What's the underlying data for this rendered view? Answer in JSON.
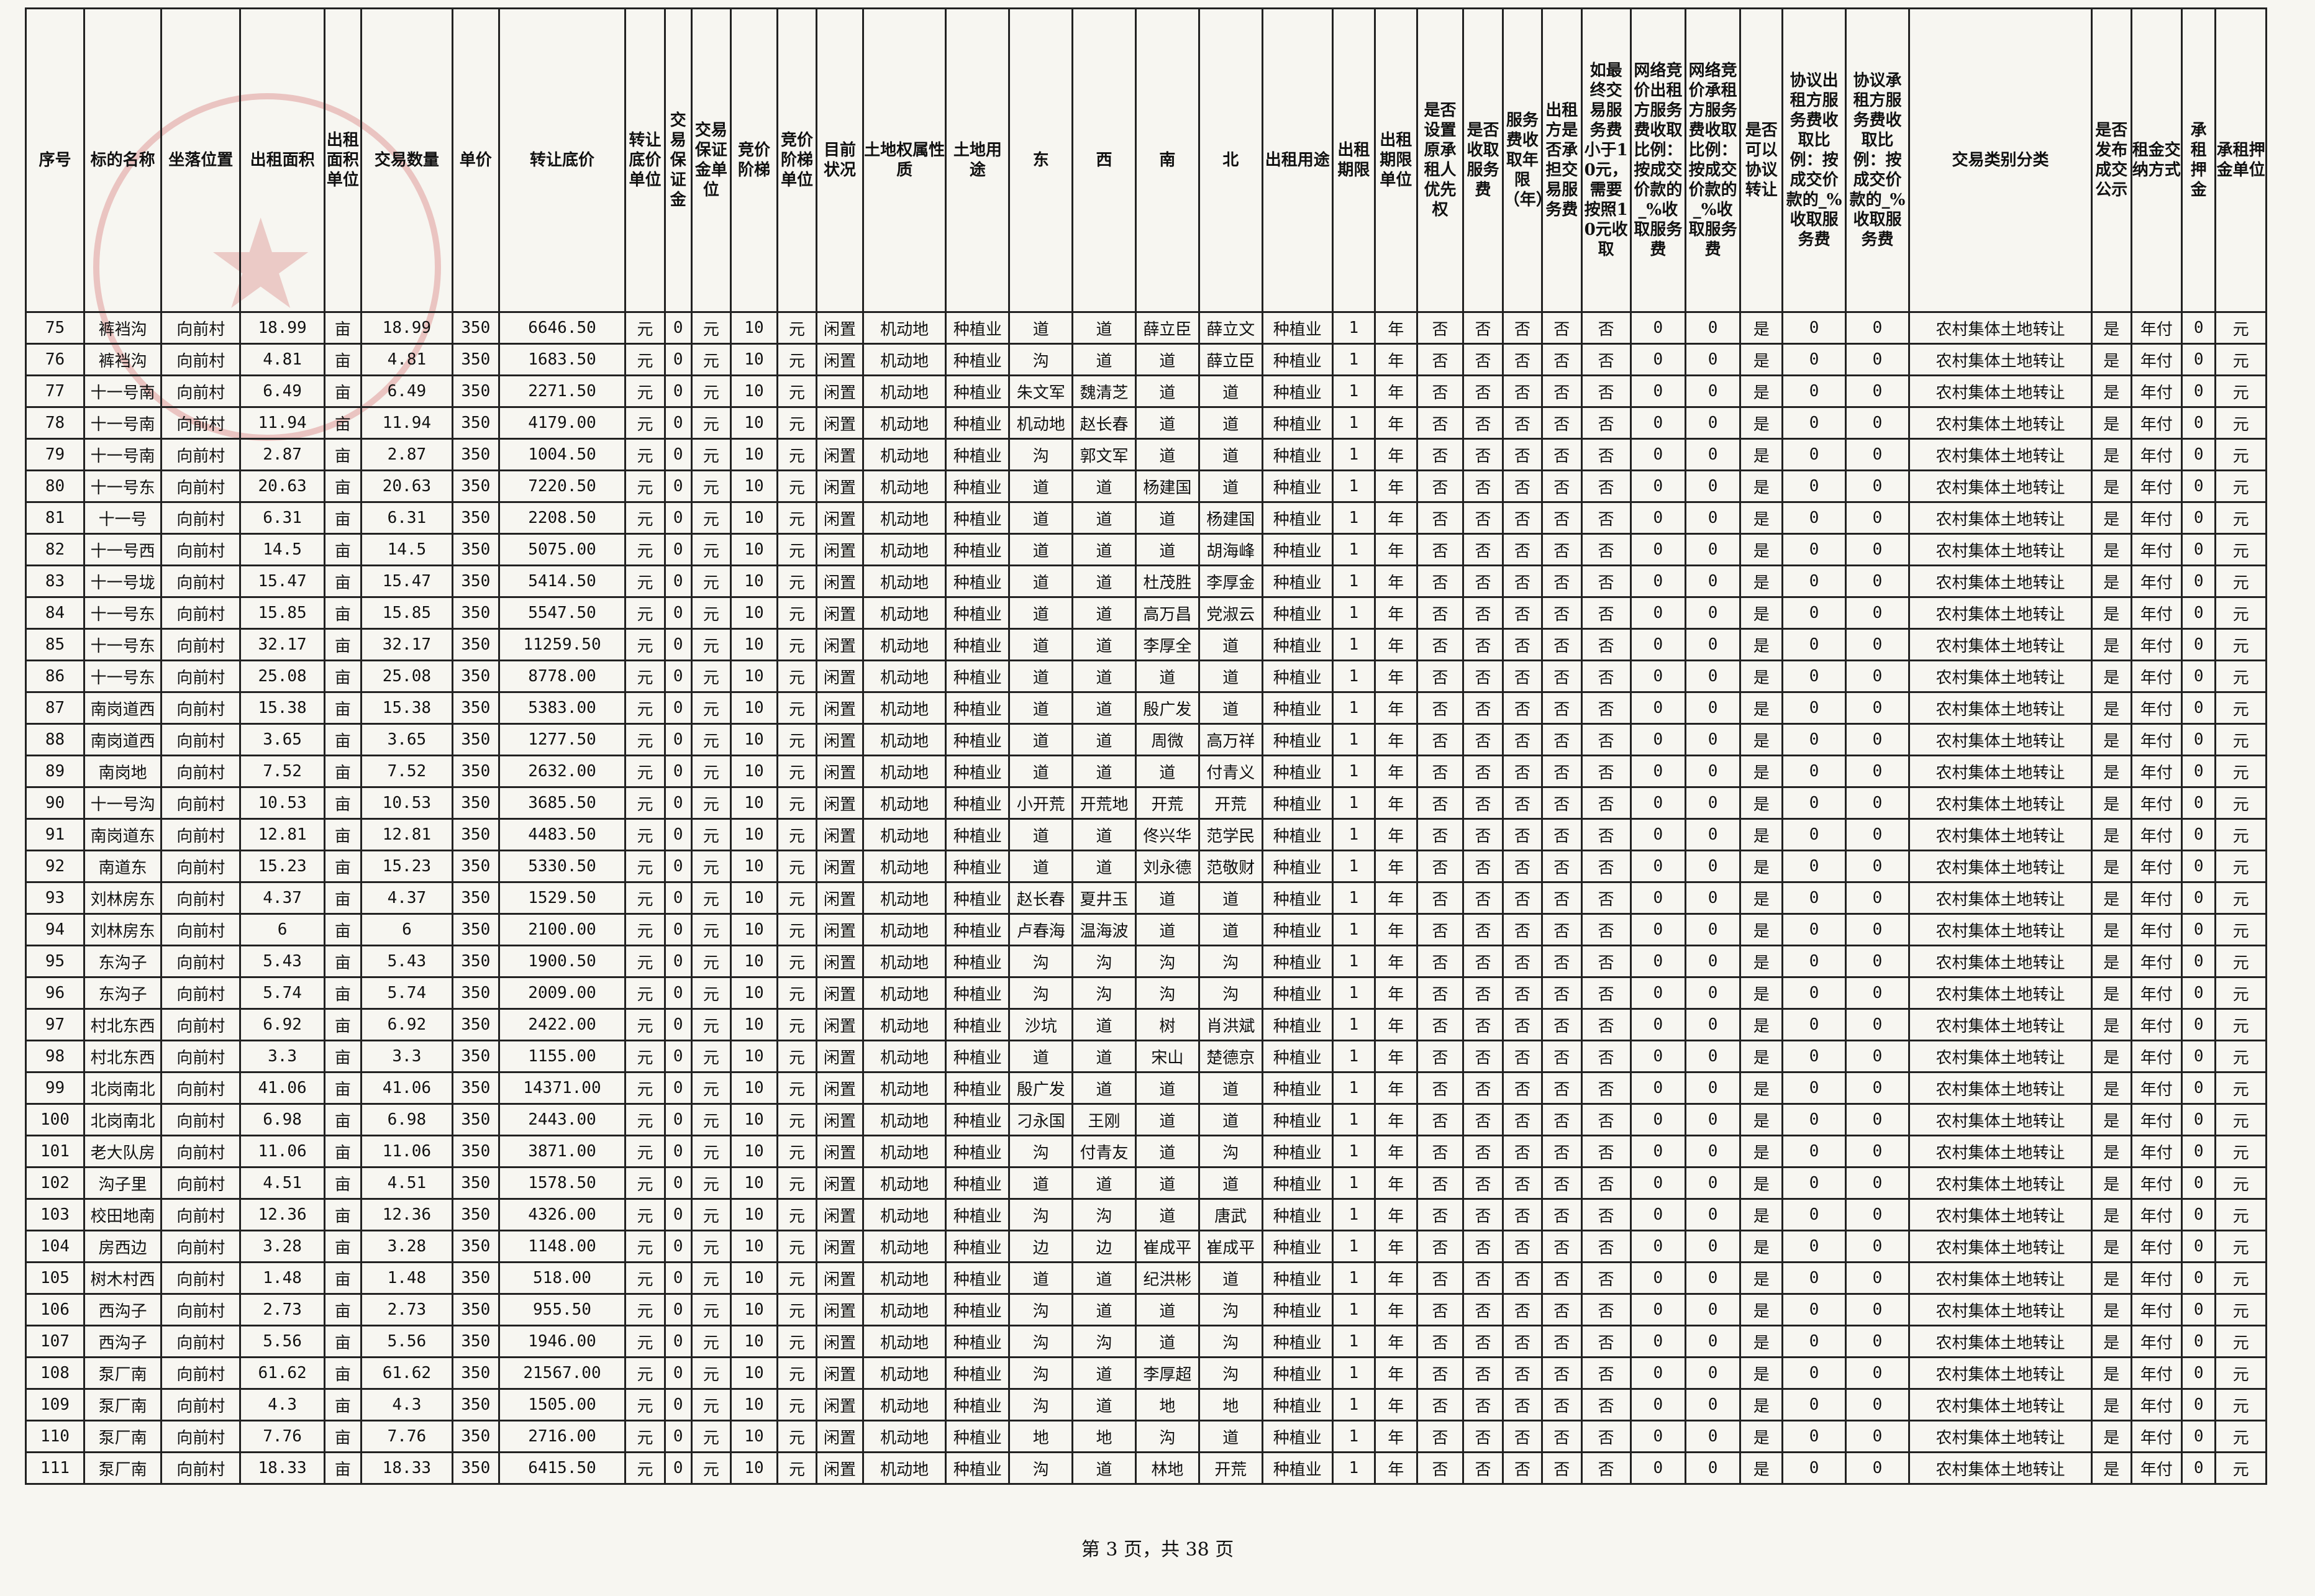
{
  "headers": [
    "序号",
    "标的名称",
    "坐落位置",
    "出租面积",
    "出租面积单位",
    "交易数量",
    "单价",
    "转让底价",
    "转让底价单位",
    "交易保证金",
    "交易保证金单位",
    "竞价阶梯",
    "竞价阶梯单位",
    "目前状况",
    "土地权属性质",
    "土地用途",
    "东",
    "西",
    "南",
    "北",
    "出租用途",
    "出租期限",
    "出租期限单位",
    "是否设置原承租人优先权",
    "是否收取服务费",
    "服务费收取年限（年）",
    "出租方是否承担交易服务费",
    "如最终交易服务费小于10元，需要按照10元收取",
    "网络竞价出租方服务费收取比例：按成交价款的_%收取服务费",
    "网络竞价承租方服务费收取比例：按成交价款的_%收取服务费",
    "是否可以协议转让",
    "协议出租方服务费收取比例：按成交价款的_%收取服务费",
    "协议承租方服务费收取比例：按成交价款的_%收取服务费",
    "交易类别分类",
    "是否发布成交公示",
    "租金交纳方式",
    "承租押金",
    "承租押金单位"
  ],
  "rows": [
    [
      "75",
      "裤裆沟",
      "向前村",
      "18.99",
      "亩",
      "18.99",
      "350",
      "6646.50",
      "元",
      "0",
      "元",
      "10",
      "元",
      "闲置",
      "机动地",
      "种植业",
      "道",
      "道",
      "薛立臣",
      "薛立文",
      "种植业",
      "1",
      "年",
      "否",
      "否",
      "否",
      "否",
      "否",
      "0",
      "0",
      "是",
      "0",
      "0",
      "农村集体土地转让",
      "是",
      "年付",
      "0",
      "元"
    ],
    [
      "76",
      "裤裆沟",
      "向前村",
      "4.81",
      "亩",
      "4.81",
      "350",
      "1683.50",
      "元",
      "0",
      "元",
      "10",
      "元",
      "闲置",
      "机动地",
      "种植业",
      "沟",
      "道",
      "道",
      "薛立臣",
      "种植业",
      "1",
      "年",
      "否",
      "否",
      "否",
      "否",
      "否",
      "0",
      "0",
      "是",
      "0",
      "0",
      "农村集体土地转让",
      "是",
      "年付",
      "0",
      "元"
    ],
    [
      "77",
      "十一号南",
      "向前村",
      "6.49",
      "亩",
      "6.49",
      "350",
      "2271.50",
      "元",
      "0",
      "元",
      "10",
      "元",
      "闲置",
      "机动地",
      "种植业",
      "朱文军",
      "魏清芝",
      "道",
      "道",
      "种植业",
      "1",
      "年",
      "否",
      "否",
      "否",
      "否",
      "否",
      "0",
      "0",
      "是",
      "0",
      "0",
      "农村集体土地转让",
      "是",
      "年付",
      "0",
      "元"
    ],
    [
      "78",
      "十一号南",
      "向前村",
      "11.94",
      "亩",
      "11.94",
      "350",
      "4179.00",
      "元",
      "0",
      "元",
      "10",
      "元",
      "闲置",
      "机动地",
      "种植业",
      "机动地",
      "赵长春",
      "道",
      "道",
      "种植业",
      "1",
      "年",
      "否",
      "否",
      "否",
      "否",
      "否",
      "0",
      "0",
      "是",
      "0",
      "0",
      "农村集体土地转让",
      "是",
      "年付",
      "0",
      "元"
    ],
    [
      "79",
      "十一号南",
      "向前村",
      "2.87",
      "亩",
      "2.87",
      "350",
      "1004.50",
      "元",
      "0",
      "元",
      "10",
      "元",
      "闲置",
      "机动地",
      "种植业",
      "沟",
      "郭文军",
      "道",
      "道",
      "种植业",
      "1",
      "年",
      "否",
      "否",
      "否",
      "否",
      "否",
      "0",
      "0",
      "是",
      "0",
      "0",
      "农村集体土地转让",
      "是",
      "年付",
      "0",
      "元"
    ],
    [
      "80",
      "十一号东",
      "向前村",
      "20.63",
      "亩",
      "20.63",
      "350",
      "7220.50",
      "元",
      "0",
      "元",
      "10",
      "元",
      "闲置",
      "机动地",
      "种植业",
      "道",
      "道",
      "杨建国",
      "道",
      "种植业",
      "1",
      "年",
      "否",
      "否",
      "否",
      "否",
      "否",
      "0",
      "0",
      "是",
      "0",
      "0",
      "农村集体土地转让",
      "是",
      "年付",
      "0",
      "元"
    ],
    [
      "81",
      "十一号",
      "向前村",
      "6.31",
      "亩",
      "6.31",
      "350",
      "2208.50",
      "元",
      "0",
      "元",
      "10",
      "元",
      "闲置",
      "机动地",
      "种植业",
      "道",
      "道",
      "道",
      "杨建国",
      "种植业",
      "1",
      "年",
      "否",
      "否",
      "否",
      "否",
      "否",
      "0",
      "0",
      "是",
      "0",
      "0",
      "农村集体土地转让",
      "是",
      "年付",
      "0",
      "元"
    ],
    [
      "82",
      "十一号西",
      "向前村",
      "14.5",
      "亩",
      "14.5",
      "350",
      "5075.00",
      "元",
      "0",
      "元",
      "10",
      "元",
      "闲置",
      "机动地",
      "种植业",
      "道",
      "道",
      "道",
      "胡海峰",
      "种植业",
      "1",
      "年",
      "否",
      "否",
      "否",
      "否",
      "否",
      "0",
      "0",
      "是",
      "0",
      "0",
      "农村集体土地转让",
      "是",
      "年付",
      "0",
      "元"
    ],
    [
      "83",
      "十一号垅",
      "向前村",
      "15.47",
      "亩",
      "15.47",
      "350",
      "5414.50",
      "元",
      "0",
      "元",
      "10",
      "元",
      "闲置",
      "机动地",
      "种植业",
      "道",
      "道",
      "杜茂胜",
      "李厚金",
      "种植业",
      "1",
      "年",
      "否",
      "否",
      "否",
      "否",
      "否",
      "0",
      "0",
      "是",
      "0",
      "0",
      "农村集体土地转让",
      "是",
      "年付",
      "0",
      "元"
    ],
    [
      "84",
      "十一号东",
      "向前村",
      "15.85",
      "亩",
      "15.85",
      "350",
      "5547.50",
      "元",
      "0",
      "元",
      "10",
      "元",
      "闲置",
      "机动地",
      "种植业",
      "道",
      "道",
      "高万昌",
      "党淑云",
      "种植业",
      "1",
      "年",
      "否",
      "否",
      "否",
      "否",
      "否",
      "0",
      "0",
      "是",
      "0",
      "0",
      "农村集体土地转让",
      "是",
      "年付",
      "0",
      "元"
    ],
    [
      "85",
      "十一号东",
      "向前村",
      "32.17",
      "亩",
      "32.17",
      "350",
      "11259.50",
      "元",
      "0",
      "元",
      "10",
      "元",
      "闲置",
      "机动地",
      "种植业",
      "道",
      "道",
      "李厚全",
      "道",
      "种植业",
      "1",
      "年",
      "否",
      "否",
      "否",
      "否",
      "否",
      "0",
      "0",
      "是",
      "0",
      "0",
      "农村集体土地转让",
      "是",
      "年付",
      "0",
      "元"
    ],
    [
      "86",
      "十一号东",
      "向前村",
      "25.08",
      "亩",
      "25.08",
      "350",
      "8778.00",
      "元",
      "0",
      "元",
      "10",
      "元",
      "闲置",
      "机动地",
      "种植业",
      "道",
      "道",
      "道",
      "道",
      "种植业",
      "1",
      "年",
      "否",
      "否",
      "否",
      "否",
      "否",
      "0",
      "0",
      "是",
      "0",
      "0",
      "农村集体土地转让",
      "是",
      "年付",
      "0",
      "元"
    ],
    [
      "87",
      "南岗道西",
      "向前村",
      "15.38",
      "亩",
      "15.38",
      "350",
      "5383.00",
      "元",
      "0",
      "元",
      "10",
      "元",
      "闲置",
      "机动地",
      "种植业",
      "道",
      "道",
      "殷广发",
      "道",
      "种植业",
      "1",
      "年",
      "否",
      "否",
      "否",
      "否",
      "否",
      "0",
      "0",
      "是",
      "0",
      "0",
      "农村集体土地转让",
      "是",
      "年付",
      "0",
      "元"
    ],
    [
      "88",
      "南岗道西",
      "向前村",
      "3.65",
      "亩",
      "3.65",
      "350",
      "1277.50",
      "元",
      "0",
      "元",
      "10",
      "元",
      "闲置",
      "机动地",
      "种植业",
      "道",
      "道",
      "周微",
      "高万祥",
      "种植业",
      "1",
      "年",
      "否",
      "否",
      "否",
      "否",
      "否",
      "0",
      "0",
      "是",
      "0",
      "0",
      "农村集体土地转让",
      "是",
      "年付",
      "0",
      "元"
    ],
    [
      "89",
      "南岗地",
      "向前村",
      "7.52",
      "亩",
      "7.52",
      "350",
      "2632.00",
      "元",
      "0",
      "元",
      "10",
      "元",
      "闲置",
      "机动地",
      "种植业",
      "道",
      "道",
      "道",
      "付青义",
      "种植业",
      "1",
      "年",
      "否",
      "否",
      "否",
      "否",
      "否",
      "0",
      "0",
      "是",
      "0",
      "0",
      "农村集体土地转让",
      "是",
      "年付",
      "0",
      "元"
    ],
    [
      "90",
      "十一号沟",
      "向前村",
      "10.53",
      "亩",
      "10.53",
      "350",
      "3685.50",
      "元",
      "0",
      "元",
      "10",
      "元",
      "闲置",
      "机动地",
      "种植业",
      "小开荒",
      "开荒地",
      "开荒",
      "开荒",
      "种植业",
      "1",
      "年",
      "否",
      "否",
      "否",
      "否",
      "否",
      "0",
      "0",
      "是",
      "0",
      "0",
      "农村集体土地转让",
      "是",
      "年付",
      "0",
      "元"
    ],
    [
      "91",
      "南岗道东",
      "向前村",
      "12.81",
      "亩",
      "12.81",
      "350",
      "4483.50",
      "元",
      "0",
      "元",
      "10",
      "元",
      "闲置",
      "机动地",
      "种植业",
      "道",
      "道",
      "佟兴华",
      "范学民",
      "种植业",
      "1",
      "年",
      "否",
      "否",
      "否",
      "否",
      "否",
      "0",
      "0",
      "是",
      "0",
      "0",
      "农村集体土地转让",
      "是",
      "年付",
      "0",
      "元"
    ],
    [
      "92",
      "南道东",
      "向前村",
      "15.23",
      "亩",
      "15.23",
      "350",
      "5330.50",
      "元",
      "0",
      "元",
      "10",
      "元",
      "闲置",
      "机动地",
      "种植业",
      "道",
      "道",
      "刘永德",
      "范敬财",
      "种植业",
      "1",
      "年",
      "否",
      "否",
      "否",
      "否",
      "否",
      "0",
      "0",
      "是",
      "0",
      "0",
      "农村集体土地转让",
      "是",
      "年付",
      "0",
      "元"
    ],
    [
      "93",
      "刘林房东",
      "向前村",
      "4.37",
      "亩",
      "4.37",
      "350",
      "1529.50",
      "元",
      "0",
      "元",
      "10",
      "元",
      "闲置",
      "机动地",
      "种植业",
      "赵长春",
      "夏井玉",
      "道",
      "道",
      "种植业",
      "1",
      "年",
      "否",
      "否",
      "否",
      "否",
      "否",
      "0",
      "0",
      "是",
      "0",
      "0",
      "农村集体土地转让",
      "是",
      "年付",
      "0",
      "元"
    ],
    [
      "94",
      "刘林房东",
      "向前村",
      "6",
      "亩",
      "6",
      "350",
      "2100.00",
      "元",
      "0",
      "元",
      "10",
      "元",
      "闲置",
      "机动地",
      "种植业",
      "卢春海",
      "温海波",
      "道",
      "道",
      "种植业",
      "1",
      "年",
      "否",
      "否",
      "否",
      "否",
      "否",
      "0",
      "0",
      "是",
      "0",
      "0",
      "农村集体土地转让",
      "是",
      "年付",
      "0",
      "元"
    ],
    [
      "95",
      "东沟子",
      "向前村",
      "5.43",
      "亩",
      "5.43",
      "350",
      "1900.50",
      "元",
      "0",
      "元",
      "10",
      "元",
      "闲置",
      "机动地",
      "种植业",
      "沟",
      "沟",
      "沟",
      "沟",
      "种植业",
      "1",
      "年",
      "否",
      "否",
      "否",
      "否",
      "否",
      "0",
      "0",
      "是",
      "0",
      "0",
      "农村集体土地转让",
      "是",
      "年付",
      "0",
      "元"
    ],
    [
      "96",
      "东沟子",
      "向前村",
      "5.74",
      "亩",
      "5.74",
      "350",
      "2009.00",
      "元",
      "0",
      "元",
      "10",
      "元",
      "闲置",
      "机动地",
      "种植业",
      "沟",
      "沟",
      "沟",
      "沟",
      "种植业",
      "1",
      "年",
      "否",
      "否",
      "否",
      "否",
      "否",
      "0",
      "0",
      "是",
      "0",
      "0",
      "农村集体土地转让",
      "是",
      "年付",
      "0",
      "元"
    ],
    [
      "97",
      "村北东西",
      "向前村",
      "6.92",
      "亩",
      "6.92",
      "350",
      "2422.00",
      "元",
      "0",
      "元",
      "10",
      "元",
      "闲置",
      "机动地",
      "种植业",
      "沙坑",
      "道",
      "树",
      "肖洪斌",
      "种植业",
      "1",
      "年",
      "否",
      "否",
      "否",
      "否",
      "否",
      "0",
      "0",
      "是",
      "0",
      "0",
      "农村集体土地转让",
      "是",
      "年付",
      "0",
      "元"
    ],
    [
      "98",
      "村北东西",
      "向前村",
      "3.3",
      "亩",
      "3.3",
      "350",
      "1155.00",
      "元",
      "0",
      "元",
      "10",
      "元",
      "闲置",
      "机动地",
      "种植业",
      "道",
      "道",
      "宋山",
      "楚德京",
      "种植业",
      "1",
      "年",
      "否",
      "否",
      "否",
      "否",
      "否",
      "0",
      "0",
      "是",
      "0",
      "0",
      "农村集体土地转让",
      "是",
      "年付",
      "0",
      "元"
    ],
    [
      "99",
      "北岗南北",
      "向前村",
      "41.06",
      "亩",
      "41.06",
      "350",
      "14371.00",
      "元",
      "0",
      "元",
      "10",
      "元",
      "闲置",
      "机动地",
      "种植业",
      "殷广发",
      "道",
      "道",
      "道",
      "种植业",
      "1",
      "年",
      "否",
      "否",
      "否",
      "否",
      "否",
      "0",
      "0",
      "是",
      "0",
      "0",
      "农村集体土地转让",
      "是",
      "年付",
      "0",
      "元"
    ],
    [
      "100",
      "北岗南北",
      "向前村",
      "6.98",
      "亩",
      "6.98",
      "350",
      "2443.00",
      "元",
      "0",
      "元",
      "10",
      "元",
      "闲置",
      "机动地",
      "种植业",
      "刁永国",
      "王刚",
      "道",
      "道",
      "种植业",
      "1",
      "年",
      "否",
      "否",
      "否",
      "否",
      "否",
      "0",
      "0",
      "是",
      "0",
      "0",
      "农村集体土地转让",
      "是",
      "年付",
      "0",
      "元"
    ],
    [
      "101",
      "老大队房",
      "向前村",
      "11.06",
      "亩",
      "11.06",
      "350",
      "3871.00",
      "元",
      "0",
      "元",
      "10",
      "元",
      "闲置",
      "机动地",
      "种植业",
      "沟",
      "付青友",
      "道",
      "沟",
      "种植业",
      "1",
      "年",
      "否",
      "否",
      "否",
      "否",
      "否",
      "0",
      "0",
      "是",
      "0",
      "0",
      "农村集体土地转让",
      "是",
      "年付",
      "0",
      "元"
    ],
    [
      "102",
      "沟子里",
      "向前村",
      "4.51",
      "亩",
      "4.51",
      "350",
      "1578.50",
      "元",
      "0",
      "元",
      "10",
      "元",
      "闲置",
      "机动地",
      "种植业",
      "道",
      "道",
      "道",
      "道",
      "种植业",
      "1",
      "年",
      "否",
      "否",
      "否",
      "否",
      "否",
      "0",
      "0",
      "是",
      "0",
      "0",
      "农村集体土地转让",
      "是",
      "年付",
      "0",
      "元"
    ],
    [
      "103",
      "校田地南",
      "向前村",
      "12.36",
      "亩",
      "12.36",
      "350",
      "4326.00",
      "元",
      "0",
      "元",
      "10",
      "元",
      "闲置",
      "机动地",
      "种植业",
      "沟",
      "沟",
      "道",
      "唐武",
      "种植业",
      "1",
      "年",
      "否",
      "否",
      "否",
      "否",
      "否",
      "0",
      "0",
      "是",
      "0",
      "0",
      "农村集体土地转让",
      "是",
      "年付",
      "0",
      "元"
    ],
    [
      "104",
      "房西边",
      "向前村",
      "3.28",
      "亩",
      "3.28",
      "350",
      "1148.00",
      "元",
      "0",
      "元",
      "10",
      "元",
      "闲置",
      "机动地",
      "种植业",
      "边",
      "边",
      "崔成平",
      "崔成平",
      "种植业",
      "1",
      "年",
      "否",
      "否",
      "否",
      "否",
      "否",
      "0",
      "0",
      "是",
      "0",
      "0",
      "农村集体土地转让",
      "是",
      "年付",
      "0",
      "元"
    ],
    [
      "105",
      "树木村西",
      "向前村",
      "1.48",
      "亩",
      "1.48",
      "350",
      "518.00",
      "元",
      "0",
      "元",
      "10",
      "元",
      "闲置",
      "机动地",
      "种植业",
      "道",
      "道",
      "纪洪彬",
      "道",
      "种植业",
      "1",
      "年",
      "否",
      "否",
      "否",
      "否",
      "否",
      "0",
      "0",
      "是",
      "0",
      "0",
      "农村集体土地转让",
      "是",
      "年付",
      "0",
      "元"
    ],
    [
      "106",
      "西沟子",
      "向前村",
      "2.73",
      "亩",
      "2.73",
      "350",
      "955.50",
      "元",
      "0",
      "元",
      "10",
      "元",
      "闲置",
      "机动地",
      "种植业",
      "沟",
      "道",
      "道",
      "沟",
      "种植业",
      "1",
      "年",
      "否",
      "否",
      "否",
      "否",
      "否",
      "0",
      "0",
      "是",
      "0",
      "0",
      "农村集体土地转让",
      "是",
      "年付",
      "0",
      "元"
    ],
    [
      "107",
      "西沟子",
      "向前村",
      "5.56",
      "亩",
      "5.56",
      "350",
      "1946.00",
      "元",
      "0",
      "元",
      "10",
      "元",
      "闲置",
      "机动地",
      "种植业",
      "沟",
      "沟",
      "道",
      "沟",
      "种植业",
      "1",
      "年",
      "否",
      "否",
      "否",
      "否",
      "否",
      "0",
      "0",
      "是",
      "0",
      "0",
      "农村集体土地转让",
      "是",
      "年付",
      "0",
      "元"
    ],
    [
      "108",
      "泵厂南",
      "向前村",
      "61.62",
      "亩",
      "61.62",
      "350",
      "21567.00",
      "元",
      "0",
      "元",
      "10",
      "元",
      "闲置",
      "机动地",
      "种植业",
      "沟",
      "道",
      "李厚超",
      "沟",
      "种植业",
      "1",
      "年",
      "否",
      "否",
      "否",
      "否",
      "否",
      "0",
      "0",
      "是",
      "0",
      "0",
      "农村集体土地转让",
      "是",
      "年付",
      "0",
      "元"
    ],
    [
      "109",
      "泵厂南",
      "向前村",
      "4.3",
      "亩",
      "4.3",
      "350",
      "1505.00",
      "元",
      "0",
      "元",
      "10",
      "元",
      "闲置",
      "机动地",
      "种植业",
      "沟",
      "道",
      "地",
      "地",
      "种植业",
      "1",
      "年",
      "否",
      "否",
      "否",
      "否",
      "否",
      "0",
      "0",
      "是",
      "0",
      "0",
      "农村集体土地转让",
      "是",
      "年付",
      "0",
      "元"
    ],
    [
      "110",
      "泵厂南",
      "向前村",
      "7.76",
      "亩",
      "7.76",
      "350",
      "2716.00",
      "元",
      "0",
      "元",
      "10",
      "元",
      "闲置",
      "机动地",
      "种植业",
      "地",
      "地",
      "沟",
      "道",
      "种植业",
      "1",
      "年",
      "否",
      "否",
      "否",
      "否",
      "否",
      "0",
      "0",
      "是",
      "0",
      "0",
      "农村集体土地转让",
      "是",
      "年付",
      "0",
      "元"
    ],
    [
      "111",
      "泵厂南",
      "向前村",
      "18.33",
      "亩",
      "18.33",
      "350",
      "6415.50",
      "元",
      "0",
      "元",
      "10",
      "元",
      "闲置",
      "机动地",
      "种植业",
      "沟",
      "道",
      "林地",
      "开荒",
      "种植业",
      "1",
      "年",
      "否",
      "否",
      "否",
      "否",
      "否",
      "0",
      "0",
      "是",
      "0",
      "0",
      "农村集体土地转让",
      "是",
      "年付",
      "0",
      "元"
    ]
  ],
  "footer": "第 3 页，共 38 页",
  "colors": {
    "stamp": "#c84646",
    "border": "#222222",
    "paper": "#f7f6f1"
  }
}
